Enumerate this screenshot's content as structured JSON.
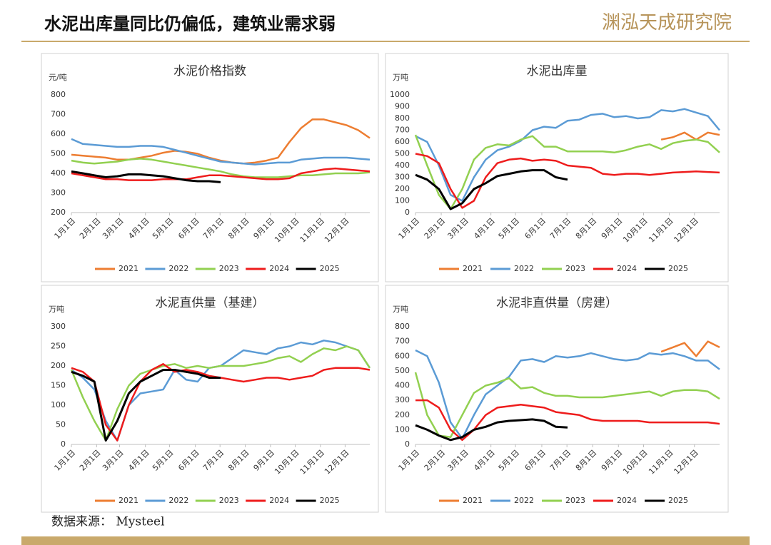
{
  "header": {
    "title": "水泥出库量同比仍偏低，建筑业需求弱",
    "logo": "渊泓天成研究院"
  },
  "source": "数据来源： Mysteel",
  "chart_data": [
    {
      "type": "line",
      "title": "水泥价格指数",
      "y_label": "元/吨",
      "x": [
        0,
        2,
        4,
        6,
        8,
        10,
        12,
        14,
        16,
        18,
        20,
        22,
        24,
        26,
        28,
        30,
        32,
        34,
        36,
        38,
        40,
        42,
        44,
        46,
        48,
        50,
        52
      ],
      "xlim": [
        0,
        52
      ],
      "xticks": [
        {
          "value": 0,
          "label": "1月1日"
        },
        {
          "value": 4.4,
          "label": "2月1日"
        },
        {
          "value": 8.4,
          "label": "3月1日"
        },
        {
          "value": 12.9,
          "label": "4月1日"
        },
        {
          "value": 17.1,
          "label": "5月1日"
        },
        {
          "value": 21.6,
          "label": "6月1日"
        },
        {
          "value": 25.9,
          "label": "7月1日"
        },
        {
          "value": 30.3,
          "label": "8月1日"
        },
        {
          "value": 34.7,
          "label": "9月1日"
        },
        {
          "value": 39,
          "label": "10月1日"
        },
        {
          "value": 43.4,
          "label": "11月1日"
        },
        {
          "value": 47.7,
          "label": "12月1日"
        }
      ],
      "ylim": [
        200,
        800
      ],
      "yticks": [
        200,
        300,
        400,
        500,
        600,
        700,
        800
      ],
      "series": [
        {
          "name": "2021",
          "color": "#ed7d31",
          "values": [
            495,
            490,
            485,
            480,
            470,
            470,
            480,
            490,
            505,
            515,
            510,
            500,
            480,
            465,
            455,
            450,
            455,
            465,
            480,
            560,
            630,
            675,
            675,
            660,
            645,
            620,
            580
          ]
        },
        {
          "name": "2022",
          "color": "#5b9bd5",
          "values": [
            575,
            550,
            545,
            540,
            535,
            535,
            540,
            540,
            535,
            520,
            505,
            490,
            475,
            460,
            455,
            450,
            445,
            450,
            455,
            455,
            470,
            475,
            480,
            480,
            480,
            475,
            470
          ]
        },
        {
          "name": "2023",
          "color": "#92d050",
          "values": [
            465,
            455,
            450,
            455,
            460,
            470,
            475,
            470,
            460,
            450,
            440,
            430,
            420,
            410,
            395,
            385,
            380,
            380,
            380,
            385,
            390,
            390,
            395,
            400,
            400,
            400,
            405
          ]
        },
        {
          "name": "2024",
          "color": "#ee1c1c",
          "values": [
            400,
            390,
            380,
            370,
            370,
            365,
            365,
            365,
            370,
            370,
            370,
            380,
            390,
            390,
            385,
            380,
            375,
            370,
            370,
            375,
            400,
            410,
            420,
            425,
            420,
            415,
            410
          ]
        },
        {
          "name": "2025",
          "color": "#000000",
          "values": [
            410,
            400,
            390,
            380,
            385,
            395,
            395,
            390,
            385,
            375,
            365,
            360,
            360,
            355,
            null,
            null,
            null,
            null,
            null,
            null,
            null,
            null,
            null,
            null,
            null,
            null,
            null
          ]
        }
      ]
    },
    {
      "type": "line",
      "title": "水泥出库量",
      "y_label": "万吨",
      "x": [
        0,
        2,
        4,
        6,
        8,
        10,
        12,
        14,
        16,
        18,
        20,
        22,
        24,
        26,
        28,
        30,
        32,
        34,
        36,
        38,
        40,
        42,
        44,
        46,
        48,
        50,
        52
      ],
      "xlim": [
        0,
        52
      ],
      "xticks": [
        {
          "value": 0,
          "label": "1月1日"
        },
        {
          "value": 4.4,
          "label": "2月1日"
        },
        {
          "value": 8.4,
          "label": "3月1日"
        },
        {
          "value": 12.9,
          "label": "4月1日"
        },
        {
          "value": 17.1,
          "label": "5月1日"
        },
        {
          "value": 21.6,
          "label": "6月1日"
        },
        {
          "value": 25.9,
          "label": "7月1日"
        },
        {
          "value": 30.3,
          "label": "8月1日"
        },
        {
          "value": 34.7,
          "label": "9月1日"
        },
        {
          "value": 39,
          "label": "10月1日"
        },
        {
          "value": 43.4,
          "label": "11月1日"
        },
        {
          "value": 47.7,
          "label": "12月1日"
        }
      ],
      "ylim": [
        0,
        1000
      ],
      "yticks": [
        0,
        100,
        200,
        300,
        400,
        500,
        600,
        700,
        800,
        900,
        1000
      ],
      "series": [
        {
          "name": "2021",
          "color": "#ed7d31",
          "values": [
            null,
            null,
            null,
            null,
            null,
            null,
            null,
            null,
            null,
            null,
            null,
            null,
            null,
            null,
            null,
            null,
            null,
            null,
            null,
            null,
            null,
            620,
            640,
            680,
            620,
            680,
            660
          ]
        },
        {
          "name": "2022",
          "color": "#5b9bd5",
          "values": [
            650,
            600,
            400,
            150,
            100,
            300,
            450,
            530,
            560,
            610,
            700,
            730,
            720,
            780,
            790,
            830,
            840,
            810,
            820,
            800,
            810,
            870,
            860,
            880,
            850,
            820,
            700
          ]
        },
        {
          "name": "2023",
          "color": "#92d050",
          "values": [
            660,
            400,
            150,
            30,
            200,
            450,
            550,
            580,
            570,
            620,
            650,
            560,
            560,
            520,
            520,
            520,
            520,
            510,
            530,
            560,
            580,
            540,
            590,
            610,
            620,
            600,
            510
          ]
        },
        {
          "name": "2024",
          "color": "#ee1c1c",
          "values": [
            500,
            480,
            420,
            200,
            40,
            100,
            300,
            420,
            450,
            460,
            440,
            450,
            440,
            400,
            390,
            380,
            330,
            320,
            330,
            330,
            320,
            330,
            340,
            345,
            350,
            345,
            340
          ]
        },
        {
          "name": "2025",
          "color": "#000000",
          "values": [
            320,
            280,
            200,
            30,
            80,
            200,
            250,
            310,
            330,
            350,
            360,
            360,
            300,
            280,
            null,
            null,
            null,
            null,
            null,
            null,
            null,
            null,
            null,
            null,
            null,
            null,
            null
          ]
        }
      ]
    },
    {
      "type": "line",
      "title": "水泥直供量（基建）",
      "y_label": "万吨",
      "x": [
        0,
        2,
        4,
        6,
        8,
        10,
        12,
        14,
        16,
        18,
        20,
        22,
        24,
        26,
        28,
        30,
        32,
        34,
        36,
        38,
        40,
        42,
        44,
        46,
        48,
        50,
        52
      ],
      "xlim": [
        0,
        52
      ],
      "xticks": [
        {
          "value": 0,
          "label": "1月1日"
        },
        {
          "value": 4.4,
          "label": "2月1日"
        },
        {
          "value": 8.4,
          "label": "3月1日"
        },
        {
          "value": 12.9,
          "label": "4月1日"
        },
        {
          "value": 17.1,
          "label": "5月1日"
        },
        {
          "value": 21.6,
          "label": "6月1日"
        },
        {
          "value": 25.9,
          "label": "7月1日"
        },
        {
          "value": 30.3,
          "label": "8月1日"
        },
        {
          "value": 34.7,
          "label": "9月1日"
        },
        {
          "value": 39,
          "label": "10月1日"
        },
        {
          "value": 43.4,
          "label": "11月1日"
        },
        {
          "value": 47.7,
          "label": "12月1日"
        }
      ],
      "ylim": [
        0,
        300
      ],
      "yticks": [
        0,
        50,
        100,
        150,
        200,
        250,
        300
      ],
      "series": [
        {
          "name": "2021",
          "color": "#ed7d31",
          "values": [
            null,
            null,
            null,
            null,
            null,
            null,
            null,
            null,
            null,
            null,
            null,
            null,
            null,
            null,
            null,
            null,
            null,
            null,
            null,
            null,
            null,
            null,
            null,
            null,
            null,
            null,
            null
          ]
        },
        {
          "name": "2022",
          "color": "#5b9bd5",
          "values": [
            190,
            170,
            140,
            60,
            10,
            100,
            130,
            135,
            140,
            190,
            165,
            160,
            195,
            200,
            220,
            240,
            235,
            230,
            245,
            250,
            260,
            255,
            265,
            260,
            250,
            240,
            195
          ]
        },
        {
          "name": "2023",
          "color": "#92d050",
          "values": [
            190,
            120,
            60,
            10,
            90,
            150,
            180,
            190,
            200,
            205,
            195,
            200,
            195,
            200,
            200,
            200,
            205,
            210,
            220,
            225,
            210,
            230,
            245,
            240,
            250,
            240,
            195
          ]
        },
        {
          "name": "2024",
          "color": "#ee1c1c",
          "values": [
            195,
            185,
            160,
            50,
            10,
            100,
            160,
            190,
            205,
            185,
            190,
            185,
            175,
            170,
            165,
            160,
            165,
            170,
            170,
            165,
            170,
            175,
            190,
            195,
            195,
            195,
            190
          ]
        },
        {
          "name": "2025",
          "color": "#000000",
          "values": [
            185,
            175,
            160,
            10,
            60,
            130,
            160,
            175,
            190,
            190,
            185,
            180,
            170,
            170,
            null,
            null,
            null,
            null,
            null,
            null,
            null,
            null,
            null,
            null,
            null,
            null,
            null
          ]
        }
      ]
    },
    {
      "type": "line",
      "title": "水泥非直供量（房建）",
      "y_label": "万吨",
      "x": [
        0,
        2,
        4,
        6,
        8,
        10,
        12,
        14,
        16,
        18,
        20,
        22,
        24,
        26,
        28,
        30,
        32,
        34,
        36,
        38,
        40,
        42,
        44,
        46,
        48,
        50,
        52
      ],
      "xlim": [
        0,
        52
      ],
      "xticks": [
        {
          "value": 0,
          "label": "1月1日"
        },
        {
          "value": 4.4,
          "label": "2月1日"
        },
        {
          "value": 8.4,
          "label": "3月1日"
        },
        {
          "value": 12.9,
          "label": "4月1日"
        },
        {
          "value": 17.1,
          "label": "5月1日"
        },
        {
          "value": 21.6,
          "label": "6月1日"
        },
        {
          "value": 25.9,
          "label": "7月1日"
        },
        {
          "value": 30.3,
          "label": "8月1日"
        },
        {
          "value": 34.7,
          "label": "9月1日"
        },
        {
          "value": 39,
          "label": "10月1日"
        },
        {
          "value": 43.4,
          "label": "11月1日"
        },
        {
          "value": 47.7,
          "label": "12月1日"
        }
      ],
      "ylim": [
        0,
        800
      ],
      "yticks": [
        0,
        100,
        200,
        300,
        400,
        500,
        600,
        700,
        800
      ],
      "series": [
        {
          "name": "2021",
          "color": "#ed7d31",
          "values": [
            null,
            null,
            null,
            null,
            null,
            null,
            null,
            null,
            null,
            null,
            null,
            null,
            null,
            null,
            null,
            null,
            null,
            null,
            null,
            null,
            null,
            630,
            660,
            690,
            600,
            700,
            660
          ]
        },
        {
          "name": "2022",
          "color": "#5b9bd5",
          "values": [
            640,
            600,
            420,
            150,
            40,
            200,
            340,
            400,
            460,
            570,
            580,
            560,
            600,
            590,
            600,
            620,
            600,
            580,
            570,
            580,
            620,
            610,
            620,
            600,
            570,
            570,
            510
          ]
        },
        {
          "name": "2023",
          "color": "#92d050",
          "values": [
            490,
            200,
            60,
            50,
            200,
            350,
            400,
            420,
            450,
            380,
            390,
            350,
            330,
            330,
            320,
            320,
            320,
            330,
            340,
            350,
            360,
            330,
            360,
            370,
            370,
            360,
            310
          ]
        },
        {
          "name": "2024",
          "color": "#ee1c1c",
          "values": [
            300,
            300,
            250,
            100,
            30,
            100,
            200,
            250,
            260,
            270,
            260,
            250,
            220,
            210,
            200,
            170,
            160,
            160,
            160,
            160,
            150,
            150,
            150,
            150,
            150,
            150,
            140
          ]
        },
        {
          "name": "2025",
          "color": "#000000",
          "values": [
            130,
            100,
            60,
            30,
            50,
            100,
            120,
            150,
            160,
            165,
            170,
            160,
            120,
            115,
            null,
            null,
            null,
            null,
            null,
            null,
            null,
            null,
            null,
            null,
            null,
            null,
            null
          ]
        }
      ]
    }
  ]
}
